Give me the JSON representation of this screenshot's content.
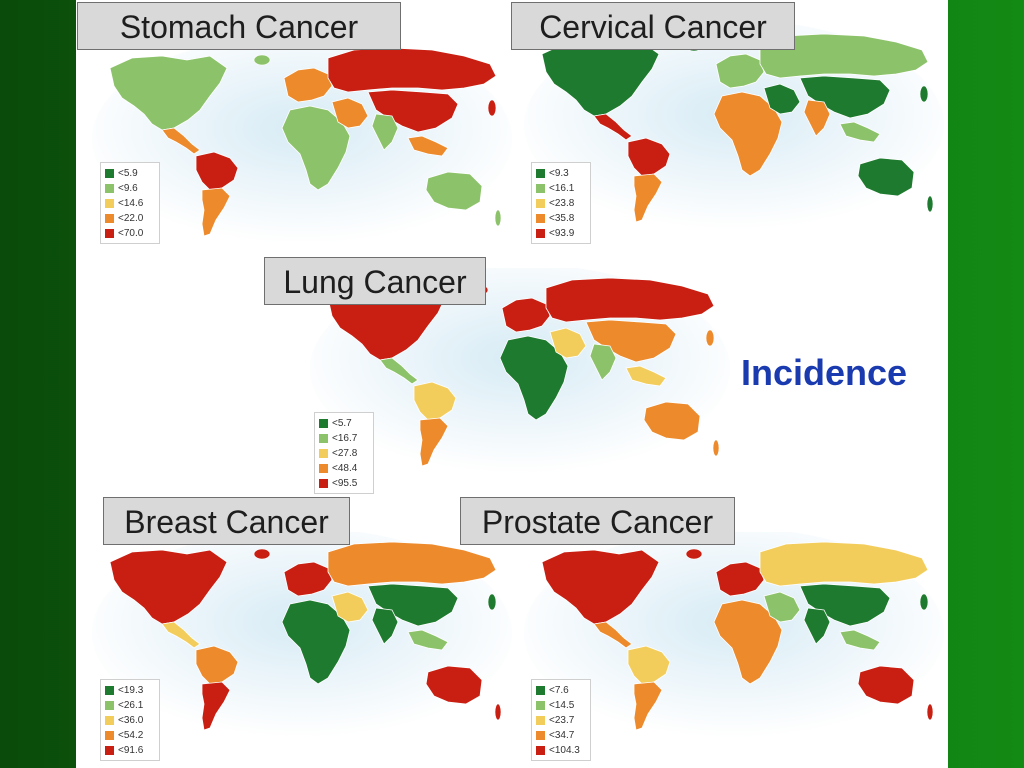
{
  "colors": {
    "c1": "#1e7a2e",
    "c2": "#8cc36a",
    "c3": "#f3cd5c",
    "c4": "#ec8a2c",
    "c5": "#c81f12",
    "water": "#d7ebf5",
    "label": "#1a3ab0"
  },
  "incidence_label": "Incidence",
  "maps": [
    {
      "title": "Stomach Cancer",
      "legend": [
        "<5.9",
        "<9.6",
        "<14.6",
        "<22.0",
        "<70.0"
      ],
      "regions": {
        "na": 2,
        "ca": 4,
        "sa_n": 5,
        "sa_s": 4,
        "eu": 4,
        "af": 2,
        "ru": 5,
        "me": 4,
        "as": 5,
        "in": 2,
        "sea": 4,
        "au": 2
      }
    },
    {
      "title": "Cervical Cancer",
      "legend": [
        "<9.3",
        "<16.1",
        "<23.8",
        "<35.8",
        "<93.9"
      ],
      "regions": {
        "na": 1,
        "ca": 5,
        "sa_n": 5,
        "sa_s": 4,
        "eu": 2,
        "af": 4,
        "ru": 2,
        "me": 1,
        "as": 1,
        "in": 4,
        "sea": 2,
        "au": 1
      }
    },
    {
      "title": "Lung Cancer",
      "legend": [
        "<5.7",
        "<16.7",
        "<27.8",
        "<48.4",
        "<95.5"
      ],
      "regions": {
        "na": 5,
        "ca": 2,
        "sa_n": 3,
        "sa_s": 4,
        "eu": 5,
        "af": 1,
        "ru": 5,
        "me": 3,
        "as": 4,
        "in": 2,
        "sea": 3,
        "au": 4
      }
    },
    {
      "title": "Breast Cancer",
      "legend": [
        "<19.3",
        "<26.1",
        "<36.0",
        "<54.2",
        "<91.6"
      ],
      "regions": {
        "na": 5,
        "ca": 3,
        "sa_n": 4,
        "sa_s": 5,
        "eu": 5,
        "af": 1,
        "ru": 4,
        "me": 3,
        "as": 1,
        "in": 1,
        "sea": 2,
        "au": 5
      }
    },
    {
      "title": "Prostate Cancer",
      "legend": [
        "<7.6",
        "<14.5",
        "<23.7",
        "<34.7",
        "<104.3"
      ],
      "regions": {
        "na": 5,
        "ca": 4,
        "sa_n": 3,
        "sa_s": 4,
        "eu": 5,
        "af": 4,
        "ru": 3,
        "me": 2,
        "as": 1,
        "in": 1,
        "sea": 2,
        "au": 5
      }
    }
  ]
}
